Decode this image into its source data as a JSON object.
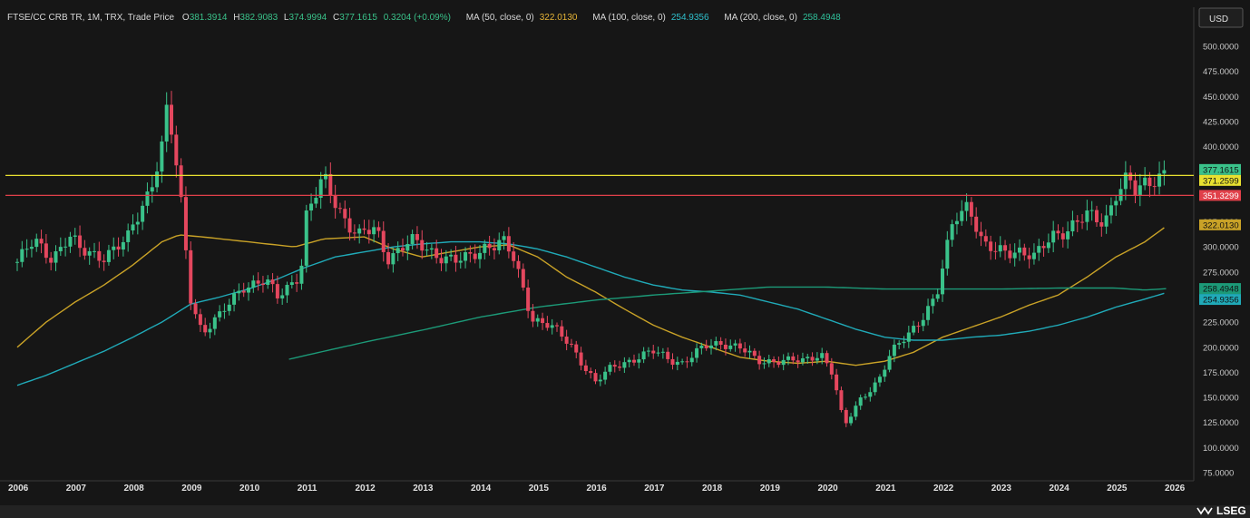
{
  "header": {
    "instrument": "FTSE/CC CRB TR, 1M, TRX, Trade Price",
    "o_label": "O",
    "o_value": "381.3914",
    "h_label": "H",
    "h_value": "382.9083",
    "l_label": "L",
    "l_value": "374.9994",
    "c_label": "C",
    "c_value": "377.1615",
    "change": "0.3204 (+0.09%)",
    "ma50_label": "MA (50, close, 0)",
    "ma50_value": "322.0130",
    "ma100_label": "MA (100, close, 0)",
    "ma100_value": "254.9356",
    "ma200_label": "MA (200, close, 0)",
    "ma200_value": "258.4948"
  },
  "currency_button": "USD",
  "brand": "LSEG",
  "colors": {
    "background": "#161616",
    "up": "#3ac28a",
    "down": "#e4475e",
    "ma50": "#c9a227",
    "ma100": "#20aab8",
    "ma200": "#1c9a78",
    "yellow_line": "#e8e030",
    "red_line": "#e0404a"
  },
  "chart_data": {
    "type": "candlestick",
    "yaxis_side": "right",
    "ylim": [
      70,
      520
    ],
    "yticks": [
      "500.0000",
      "475.0000",
      "450.0000",
      "425.0000",
      "400.0000",
      "375.0000",
      "350.0000",
      "325.0000",
      "300.0000",
      "275.0000",
      "250.0000",
      "225.0000",
      "200.0000",
      "175.0000",
      "150.0000",
      "125.0000",
      "100.0000",
      "75.0000"
    ],
    "xticks": [
      "2006",
      "2007",
      "2008",
      "2009",
      "2010",
      "2011",
      "2012",
      "2013",
      "2014",
      "2015",
      "2016",
      "2017",
      "2018",
      "2019",
      "2020",
      "2021",
      "2022",
      "2023",
      "2024",
      "2025",
      "2026"
    ],
    "grid": false,
    "horizontal_lines": [
      {
        "value": 371.2599,
        "label": "371.2599",
        "color": "#e8e030"
      },
      {
        "value": 351.3299,
        "label": "351.3299",
        "color": "#e0404a"
      }
    ],
    "price_tags": [
      {
        "value": 377.1615,
        "label": "377.1615",
        "color": "#3ac28a"
      },
      {
        "value": 322.013,
        "label": "322.0130",
        "color": "#c9a227"
      },
      {
        "value": 258.4948,
        "label": "258.4948",
        "color": "#1c9a78"
      },
      {
        "value": 254.9356,
        "label": "254.9356",
        "color": "#20aab8"
      }
    ],
    "price_anchors": [
      [
        2006.0,
        285
      ],
      [
        2006.3,
        305
      ],
      [
        2006.6,
        290
      ],
      [
        2006.9,
        310
      ],
      [
        2007.1,
        295
      ],
      [
        2007.5,
        292
      ],
      [
        2007.9,
        305
      ],
      [
        2008.0,
        320
      ],
      [
        2008.3,
        360
      ],
      [
        2008.5,
        400
      ],
      [
        2008.55,
        440
      ],
      [
        2008.65,
        420
      ],
      [
        2008.8,
        360
      ],
      [
        2009.0,
        250
      ],
      [
        2009.2,
        215
      ],
      [
        2009.5,
        230
      ],
      [
        2009.9,
        262
      ],
      [
        2010.3,
        265
      ],
      [
        2010.5,
        250
      ],
      [
        2010.9,
        275
      ],
      [
        2011.0,
        330
      ],
      [
        2011.3,
        368
      ],
      [
        2011.7,
        325
      ],
      [
        2011.9,
        310
      ],
      [
        2012.2,
        318
      ],
      [
        2012.4,
        290
      ],
      [
        2012.8,
        305
      ],
      [
        2013.2,
        295
      ],
      [
        2013.6,
        285
      ],
      [
        2013.8,
        288
      ],
      [
        2014.1,
        302
      ],
      [
        2014.4,
        305
      ],
      [
        2014.6,
        285
      ],
      [
        2014.9,
        230
      ],
      [
        2015.2,
        222
      ],
      [
        2015.6,
        200
      ],
      [
        2016.0,
        165
      ],
      [
        2016.3,
        180
      ],
      [
        2016.7,
        190
      ],
      [
        2017.0,
        195
      ],
      [
        2017.3,
        188
      ],
      [
        2017.5,
        185
      ],
      [
        2017.9,
        200
      ],
      [
        2018.2,
        205
      ],
      [
        2018.5,
        200
      ],
      [
        2018.8,
        185
      ],
      [
        2019.2,
        188
      ],
      [
        2019.6,
        185
      ],
      [
        2019.9,
        195
      ],
      [
        2020.1,
        175
      ],
      [
        2020.3,
        120
      ],
      [
        2020.6,
        150
      ],
      [
        2020.9,
        168
      ],
      [
        2021.1,
        192
      ],
      [
        2021.5,
        220
      ],
      [
        2021.9,
        250
      ],
      [
        2022.2,
        330
      ],
      [
        2022.45,
        345
      ],
      [
        2022.7,
        300
      ],
      [
        2022.9,
        295
      ],
      [
        2023.3,
        298
      ],
      [
        2023.6,
        288
      ],
      [
        2023.9,
        312
      ],
      [
        2024.2,
        320
      ],
      [
        2024.5,
        330
      ],
      [
        2024.8,
        325
      ],
      [
        2025.0,
        355
      ],
      [
        2025.2,
        368
      ],
      [
        2025.35,
        352
      ],
      [
        2025.5,
        362
      ],
      [
        2025.8,
        375
      ],
      [
        2025.9,
        377.16
      ]
    ],
    "ma50_anchors": [
      [
        2006.0,
        200
      ],
      [
        2006.5,
        225
      ],
      [
        2007.0,
        245
      ],
      [
        2007.5,
        262
      ],
      [
        2008.0,
        282
      ],
      [
        2008.5,
        305
      ],
      [
        2008.8,
        312
      ],
      [
        2009.2,
        310
      ],
      [
        2010.0,
        305
      ],
      [
        2010.8,
        300
      ],
      [
        2011.3,
        308
      ],
      [
        2012.0,
        310
      ],
      [
        2012.5,
        298
      ],
      [
        2013.0,
        290
      ],
      [
        2013.5,
        295
      ],
      [
        2014.0,
        300
      ],
      [
        2014.5,
        302
      ],
      [
        2015.0,
        290
      ],
      [
        2015.5,
        270
      ],
      [
        2016.0,
        255
      ],
      [
        2016.5,
        238
      ],
      [
        2017.0,
        222
      ],
      [
        2017.5,
        210
      ],
      [
        2018.0,
        200
      ],
      [
        2018.5,
        190
      ],
      [
        2019.0,
        186
      ],
      [
        2019.5,
        184
      ],
      [
        2020.0,
        186
      ],
      [
        2020.5,
        182
      ],
      [
        2021.0,
        186
      ],
      [
        2021.5,
        195
      ],
      [
        2022.0,
        210
      ],
      [
        2022.5,
        220
      ],
      [
        2023.0,
        230
      ],
      [
        2023.5,
        242
      ],
      [
        2024.0,
        252
      ],
      [
        2024.5,
        270
      ],
      [
        2025.0,
        290
      ],
      [
        2025.5,
        305
      ],
      [
        2025.9,
        322.013
      ]
    ],
    "ma100_anchors": [
      [
        2006.0,
        162
      ],
      [
        2006.5,
        172
      ],
      [
        2007.0,
        184
      ],
      [
        2007.5,
        196
      ],
      [
        2008.0,
        210
      ],
      [
        2008.5,
        225
      ],
      [
        2009.0,
        243
      ],
      [
        2009.5,
        250
      ],
      [
        2010.0,
        258
      ],
      [
        2010.5,
        268
      ],
      [
        2011.0,
        280
      ],
      [
        2011.5,
        290
      ],
      [
        2012.0,
        295
      ],
      [
        2012.5,
        300
      ],
      [
        2013.0,
        303
      ],
      [
        2013.5,
        305
      ],
      [
        2014.0,
        305
      ],
      [
        2014.5,
        303
      ],
      [
        2015.0,
        298
      ],
      [
        2015.5,
        290
      ],
      [
        2016.0,
        280
      ],
      [
        2016.5,
        270
      ],
      [
        2017.0,
        262
      ],
      [
        2017.5,
        257
      ],
      [
        2018.0,
        255
      ],
      [
        2018.5,
        252
      ],
      [
        2019.0,
        245
      ],
      [
        2019.5,
        238
      ],
      [
        2020.0,
        228
      ],
      [
        2020.5,
        218
      ],
      [
        2021.0,
        210
      ],
      [
        2021.5,
        207
      ],
      [
        2022.0,
        207
      ],
      [
        2022.5,
        210
      ],
      [
        2023.0,
        212
      ],
      [
        2023.5,
        216
      ],
      [
        2024.0,
        222
      ],
      [
        2024.5,
        230
      ],
      [
        2025.0,
        240
      ],
      [
        2025.5,
        248
      ],
      [
        2025.9,
        254.9356
      ]
    ],
    "ma200_anchors": [
      [
        2010.7,
        188
      ],
      [
        2011.0,
        192
      ],
      [
        2012.0,
        205
      ],
      [
        2013.0,
        217
      ],
      [
        2014.0,
        230
      ],
      [
        2015.0,
        240
      ],
      [
        2016.0,
        247
      ],
      [
        2017.0,
        252
      ],
      [
        2018.0,
        256
      ],
      [
        2019.0,
        260
      ],
      [
        2020.0,
        260
      ],
      [
        2021.0,
        258
      ],
      [
        2022.0,
        258
      ],
      [
        2023.0,
        258
      ],
      [
        2024.0,
        259
      ],
      [
        2025.0,
        259
      ],
      [
        2025.5,
        257
      ],
      [
        2025.9,
        258.4948
      ]
    ]
  }
}
